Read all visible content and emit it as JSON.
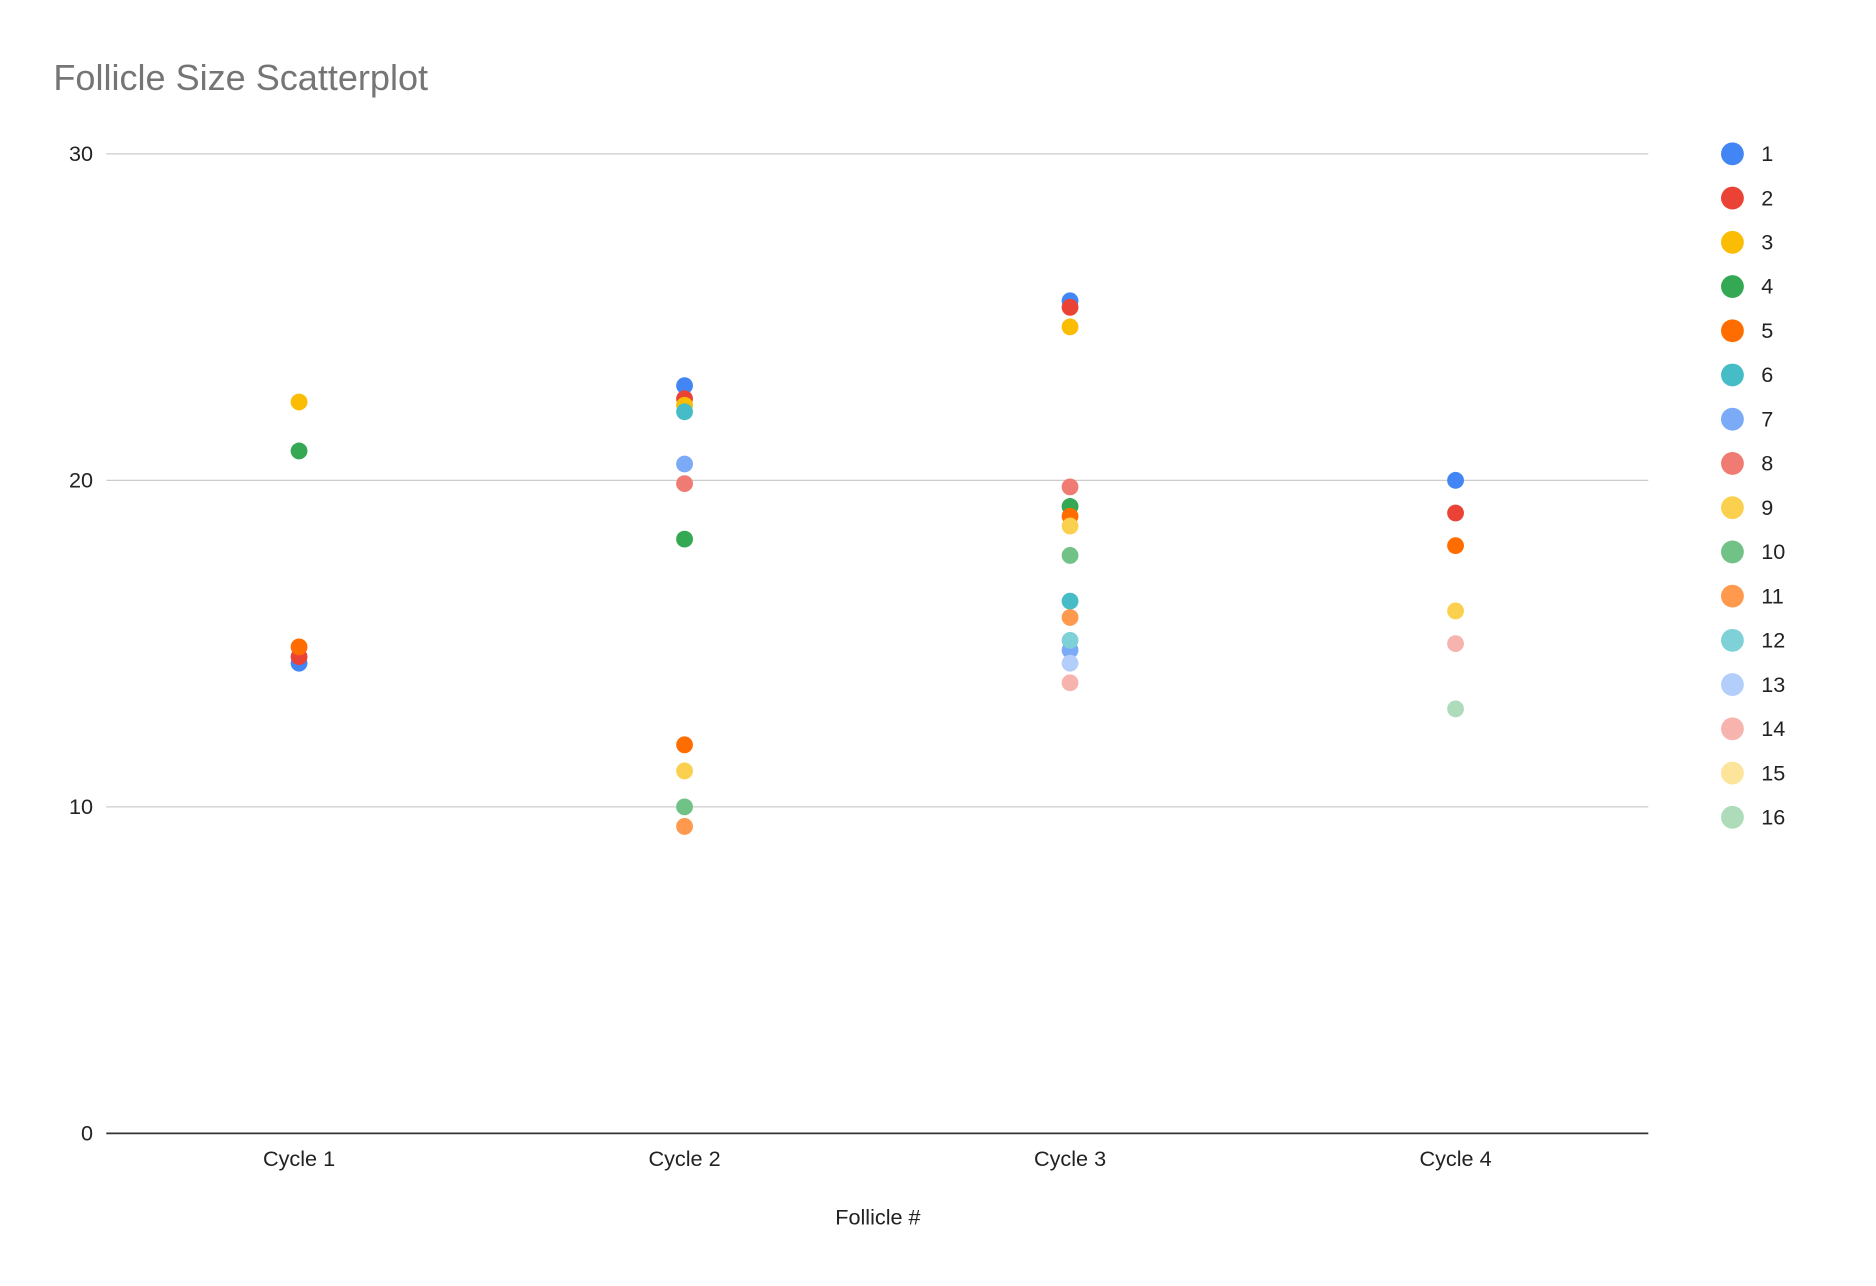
{
  "chart_data": {
    "type": "scatter",
    "title": "Follicle Size Scatterplot",
    "xlabel": "Follicle #",
    "ylabel": "",
    "categories": [
      "Cycle 1",
      "Cycle 2",
      "Cycle 3",
      "Cycle 4"
    ],
    "ylim": [
      0,
      30
    ],
    "yticks": [
      0,
      10,
      20,
      30
    ],
    "grid": true,
    "legend_position": "right",
    "series": [
      {
        "name": "1",
        "color": "#4285F4",
        "values": [
          14.4,
          22.9,
          25.5,
          20
        ]
      },
      {
        "name": "2",
        "color": "#EA4335",
        "values": [
          14.6,
          22.5,
          25.3,
          19
        ]
      },
      {
        "name": "3",
        "color": "#FBBC04",
        "values": [
          22.4,
          22.3,
          24.7,
          null
        ]
      },
      {
        "name": "4",
        "color": "#34A853",
        "values": [
          20.9,
          18.2,
          19.2,
          null
        ]
      },
      {
        "name": "5",
        "color": "#FF6D01",
        "values": [
          14.9,
          11.9,
          18.9,
          18
        ]
      },
      {
        "name": "6",
        "color": "#46BDC6",
        "values": [
          null,
          22.1,
          16.3,
          null
        ]
      },
      {
        "name": "7",
        "color": "#7BAAF7",
        "values": [
          null,
          20.5,
          14.8,
          null
        ]
      },
      {
        "name": "8",
        "color": "#F07B72",
        "values": [
          null,
          19.9,
          19.8,
          null
        ]
      },
      {
        "name": "9",
        "color": "#FCD04F",
        "values": [
          null,
          11.1,
          18.6,
          16
        ]
      },
      {
        "name": "10",
        "color": "#71C287",
        "values": [
          null,
          10.0,
          17.7,
          null
        ]
      },
      {
        "name": "11",
        "color": "#FF994D",
        "values": [
          null,
          9.4,
          15.8,
          null
        ]
      },
      {
        "name": "12",
        "color": "#7ED1D7",
        "values": [
          null,
          null,
          15.1,
          null
        ]
      },
      {
        "name": "13",
        "color": "#B3CEFB",
        "values": [
          null,
          null,
          14.4,
          null
        ]
      },
      {
        "name": "14",
        "color": "#F7B4AE",
        "values": [
          null,
          null,
          13.8,
          15
        ]
      },
      {
        "name": "15",
        "color": "#FDE49B",
        "values": [
          null,
          null,
          null,
          null
        ]
      },
      {
        "name": "16",
        "color": "#AEDCBA",
        "values": [
          null,
          null,
          null,
          13
        ]
      }
    ]
  }
}
